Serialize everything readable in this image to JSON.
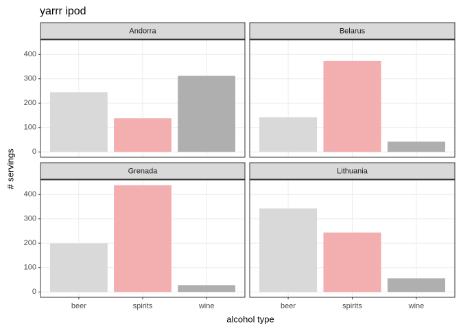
{
  "title": "yarrr ipod",
  "x_label": "alcohol type",
  "y_label": "# servings",
  "chart_data": [
    {
      "type": "bar",
      "title": "Andorra",
      "categories": [
        "beer",
        "spirits",
        "wine"
      ],
      "values": [
        245,
        138,
        312
      ],
      "colors": [
        "#d9d9d9",
        "#f3afaf",
        "#afafb0"
      ],
      "ylim": [
        -21.9,
        459.9
      ],
      "yticks": [
        0,
        100,
        200,
        300,
        400
      ],
      "grid": true
    },
    {
      "type": "bar",
      "title": "Belarus",
      "categories": [
        "beer",
        "spirits",
        "wine"
      ],
      "values": [
        142,
        373,
        42
      ],
      "colors": [
        "#d9d9d9",
        "#f3afaf",
        "#afafb0"
      ],
      "ylim": [
        -21.9,
        459.9
      ],
      "yticks": [
        0,
        100,
        200,
        300,
        400
      ],
      "grid": true
    },
    {
      "type": "bar",
      "title": "Grenada",
      "categories": [
        "beer",
        "spirits",
        "wine"
      ],
      "values": [
        199,
        438,
        28
      ],
      "colors": [
        "#d9d9d9",
        "#f3afaf",
        "#afafb0"
      ],
      "ylim": [
        -21.9,
        459.9
      ],
      "yticks": [
        0,
        100,
        200,
        300,
        400
      ],
      "grid": true
    },
    {
      "type": "bar",
      "title": "Lithuania",
      "categories": [
        "beer",
        "spirits",
        "wine"
      ],
      "values": [
        343,
        244,
        56
      ],
      "colors": [
        "#d9d9d9",
        "#f3afaf",
        "#afafb0"
      ],
      "ylim": [
        -21.9,
        459.9
      ],
      "yticks": [
        0,
        100,
        200,
        300,
        400
      ],
      "grid": true
    }
  ]
}
